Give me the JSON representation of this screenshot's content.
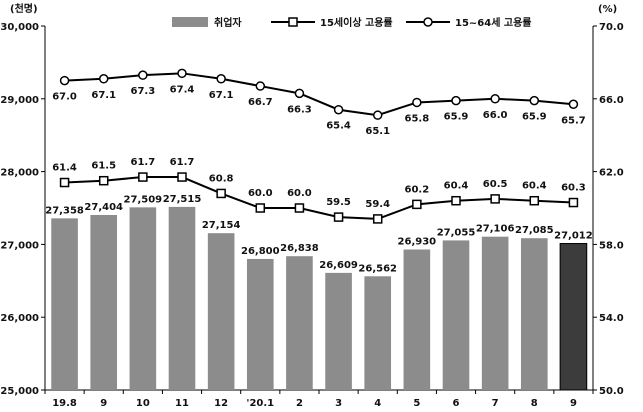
{
  "chart_data": {
    "type": "bar",
    "categories": [
      "19.8",
      "9",
      "10",
      "11",
      "12",
      "'20.1",
      "2",
      "3",
      "4",
      "5",
      "6",
      "7",
      "8",
      "9"
    ],
    "left_axis": {
      "unit": "(천명)",
      "min": 25000,
      "max": 30000,
      "ticks": [
        "25,000",
        "26,000",
        "27,000",
        "28,000",
        "29,000",
        "30,000"
      ]
    },
    "right_axis": {
      "unit": "(%)",
      "min": 50.0,
      "max": 70.0,
      "ticks": [
        "50.0",
        "54.0",
        "58.0",
        "62.0",
        "66.0",
        "70.0"
      ]
    },
    "series": [
      {
        "name": "취업자",
        "kind": "bar",
        "axis": "left",
        "values": [
          27358,
          27404,
          27509,
          27515,
          27154,
          26800,
          26838,
          26609,
          26562,
          26930,
          27055,
          27106,
          27085,
          27012
        ],
        "labels": [
          "27,358",
          "27,404",
          "27,509",
          "27,515",
          "27,154",
          "26,800",
          "26,838",
          "26,609",
          "26,562",
          "26,930",
          "27,055",
          "27,106",
          "27,085",
          "27,012"
        ],
        "color": "#8c8c8c",
        "highlight_color": "#3c3c3c"
      },
      {
        "name": "15세이상 고용률",
        "kind": "line",
        "marker": "square",
        "axis": "right",
        "values": [
          61.4,
          61.5,
          61.7,
          61.7,
          60.8,
          60.0,
          60.0,
          59.5,
          59.4,
          60.2,
          60.4,
          60.5,
          60.4,
          60.3
        ],
        "labels": [
          "61.4",
          "61.5",
          "61.7",
          "61.7",
          "60.8",
          "60.0",
          "60.0",
          "59.5",
          "59.4",
          "60.2",
          "60.4",
          "60.5",
          "60.4",
          "60.3"
        ]
      },
      {
        "name": "15~64세 고용률",
        "kind": "line",
        "marker": "circle",
        "axis": "right",
        "values": [
          67.0,
          67.1,
          67.3,
          67.4,
          67.1,
          66.7,
          66.3,
          65.4,
          65.1,
          65.8,
          65.9,
          66.0,
          65.9,
          65.7
        ],
        "labels": [
          "67.0",
          "67.1",
          "67.3",
          "67.4",
          "67.1",
          "66.7",
          "66.3",
          "65.4",
          "65.1",
          "65.8",
          "65.9",
          "66.0",
          "65.9",
          "65.7"
        ]
      }
    ],
    "legend": "top-center",
    "grid": false
  }
}
